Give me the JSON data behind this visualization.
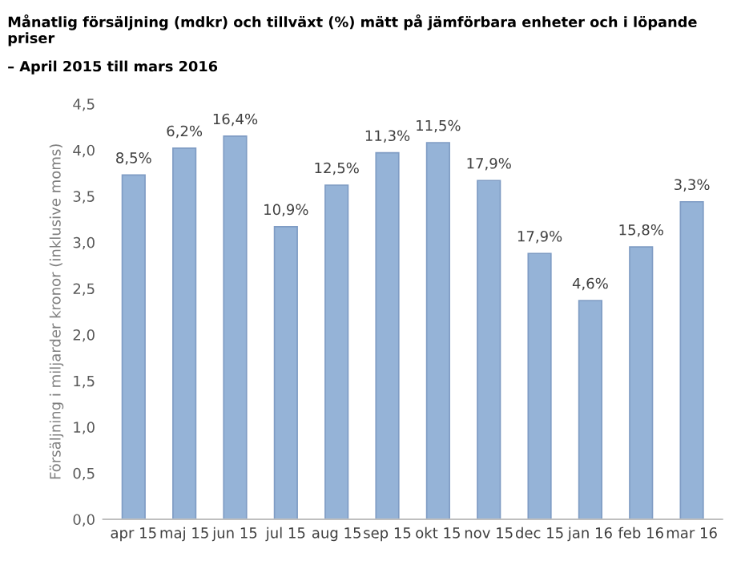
{
  "chart_data": {
    "type": "bar",
    "title": "Månatlig försäljning (mdkr) och tillväxt (%) mätt på jämförbara enheter och i löpande priser",
    "subtitle": "– April 2015 till mars 2016",
    "ylabel": "Försäljning i miljarder kronor (inklusive moms)",
    "categories": [
      "apr 15",
      "maj 15",
      "jun 15",
      "jul 15",
      "aug 15",
      "sep 15",
      "okt 15",
      "nov 15",
      "dec 15",
      "jan 16",
      "feb 16",
      "mar 16"
    ],
    "values": [
      3.73,
      4.02,
      4.15,
      3.17,
      3.62,
      3.97,
      4.08,
      3.67,
      2.88,
      2.37,
      2.95,
      3.44
    ],
    "annotations": [
      {
        "text": "8,5%",
        "x": "apr 15",
        "y": 3.73
      },
      {
        "text": "6,2%",
        "x": "maj 15",
        "y": 4.02
      },
      {
        "text": "16,4%",
        "x": "jun 15",
        "y": 4.15
      },
      {
        "text": "10,9%",
        "x": "jul 15",
        "y": 3.17
      },
      {
        "text": "12,5%",
        "x": "aug 15",
        "y": 3.62
      },
      {
        "text": "11,3%",
        "x": "sep 15",
        "y": 3.97
      },
      {
        "text": "11,5%",
        "x": "okt 15",
        "y": 4.08
      },
      {
        "text": "17,9%",
        "x": "nov 15",
        "y": 3.67
      },
      {
        "text": "17,9%",
        "x": "dec 15",
        "y": 2.88
      },
      {
        "text": "4,6%",
        "x": "jan 16",
        "y": 2.37
      },
      {
        "text": "15,8%",
        "x": "feb 16",
        "y": 2.95
      },
      {
        "text": "3,3%",
        "x": "mar 16",
        "y": 3.44
      }
    ],
    "color": "#95b3d7",
    "ylim": [
      0,
      4.5
    ],
    "yticks": [
      {
        "value": 0,
        "label": "0,0"
      },
      {
        "value": 0.5,
        "label": "0,5"
      },
      {
        "value": 1,
        "label": "1,0"
      },
      {
        "value": 1.5,
        "label": "1,5"
      },
      {
        "value": 2,
        "label": "2,0"
      },
      {
        "value": 2.5,
        "label": "2,5"
      },
      {
        "value": 3,
        "label": "3,0"
      },
      {
        "value": 3.5,
        "label": "3,5"
      },
      {
        "value": 4,
        "label": "4,0"
      },
      {
        "value": 4.5,
        "label": "4,5"
      }
    ]
  }
}
